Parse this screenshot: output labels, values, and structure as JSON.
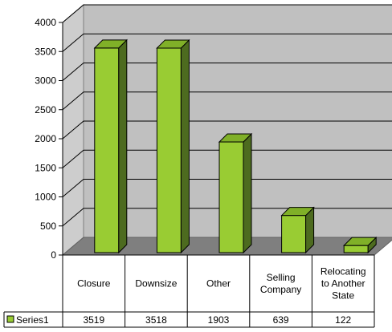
{
  "chart_data": {
    "type": "bar",
    "categories": [
      [
        "Closure"
      ],
      [
        "Downsize"
      ],
      [
        "Other"
      ],
      [
        "Selling",
        "Company"
      ],
      [
        "Relocating",
        "to Another",
        "State"
      ]
    ],
    "series": [
      {
        "name": "Series1",
        "values": [
          3519,
          3518,
          1903,
          639,
          122
        ]
      }
    ],
    "ylim": [
      0,
      4000
    ],
    "yticks": [
      "0",
      "500",
      "1000",
      "1500",
      "2000",
      "2500",
      "3000",
      "3500",
      "4000"
    ],
    "grid": true,
    "legend_placement": "data-table",
    "colors": {
      "bar_front": "#99cc33",
      "bar_side": "#4d6b1f",
      "bar_top": "#80b028",
      "back_wall": "#c0c0c0",
      "side_wall": "#cdcdcd",
      "floor": "#7f7f7f",
      "gridline": "#000000"
    }
  }
}
